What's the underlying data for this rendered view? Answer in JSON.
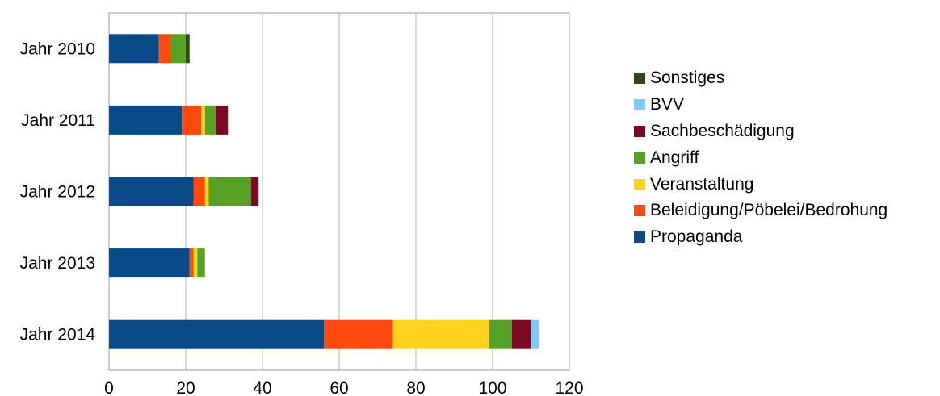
{
  "chart_data": {
    "type": "bar",
    "orientation": "horizontal",
    "stacked": true,
    "categories": [
      "Jahr 2010",
      "Jahr 2011",
      "Jahr 2012",
      "Jahr 2013",
      "Jahr 2014"
    ],
    "series": [
      {
        "name": "Propaganda",
        "color": "#0a4a88",
        "values": [
          13,
          19,
          22,
          21,
          56
        ]
      },
      {
        "name": "Beleidigung/Pöbelei/Bedrohung",
        "color": "#ff4a0f",
        "values": [
          3,
          5,
          3,
          1,
          18
        ]
      },
      {
        "name": "Veranstaltung",
        "color": "#ffd21f",
        "values": [
          0,
          1,
          1,
          1,
          25
        ]
      },
      {
        "name": "Angriff",
        "color": "#57a226",
        "values": [
          4,
          3,
          11,
          2,
          6
        ]
      },
      {
        "name": "Sachbeschädigung",
        "color": "#7d0a22",
        "values": [
          0,
          3,
          2,
          0,
          5
        ]
      },
      {
        "name": "BVV",
        "color": "#82c8ff",
        "values": [
          0,
          0,
          0,
          0,
          2
        ]
      },
      {
        "name": "Sonstiges",
        "color": "#344a0a",
        "values": [
          1,
          0,
          0,
          0,
          0
        ]
      }
    ],
    "xlim": [
      0,
      120
    ],
    "xticks": [
      0,
      20,
      40,
      60,
      80,
      100,
      120
    ],
    "grid": true,
    "legend_position": "right",
    "legend_order": [
      "Sonstiges",
      "BVV",
      "Sachbeschädigung",
      "Angriff",
      "Veranstaltung",
      "Beleidigung/Pöbelei/Bedrohung",
      "Propaganda"
    ]
  }
}
